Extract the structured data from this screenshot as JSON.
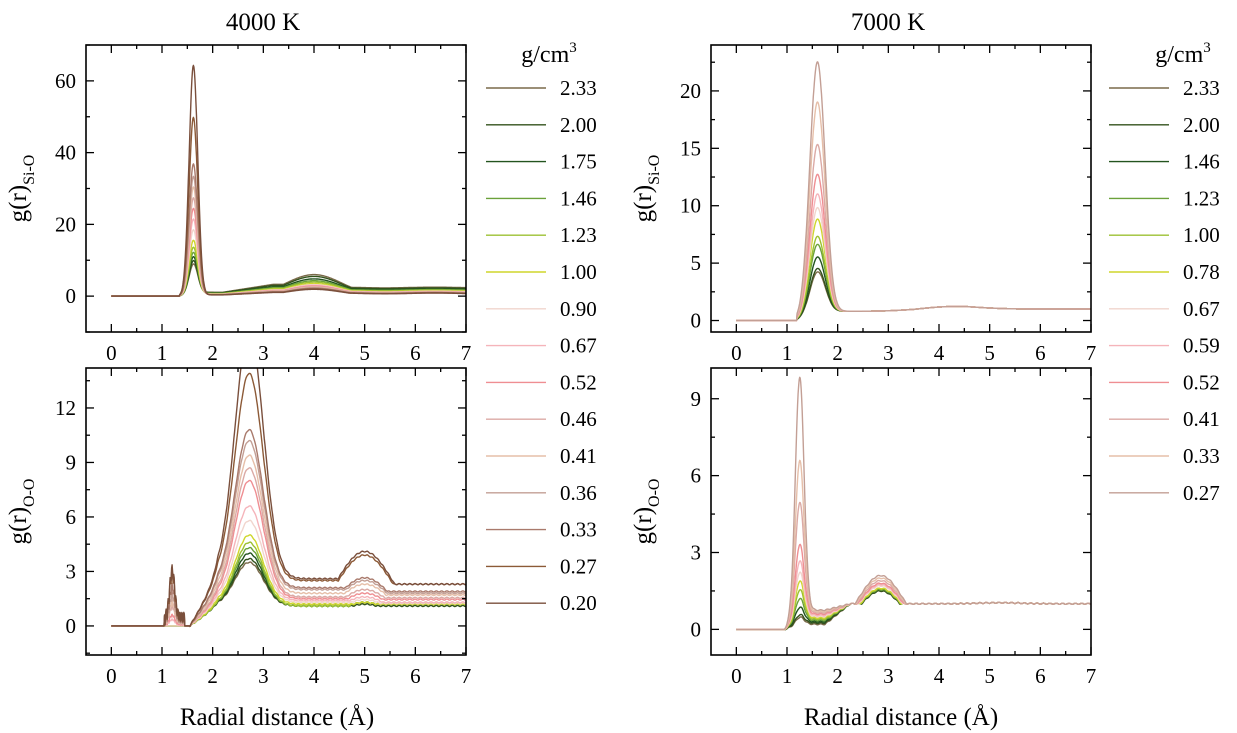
{
  "figure": {
    "xlabel": "Radial distance (Å)",
    "columns": [
      {
        "title": "4000 K",
        "legend_title": "g/cm",
        "legend_title_sup": "3"
      },
      {
        "title": "7000 K",
        "legend_title": "g/cm",
        "legend_title_sup": "3"
      }
    ]
  },
  "chart_data": [
    {
      "type": "line",
      "panel": "4000 K Si-O",
      "ylabel": "g(r)",
      "ylabel_sub": "Si-O",
      "xlim": [
        -0.5,
        7
      ],
      "ylim": [
        -10,
        70
      ],
      "xticks": [
        0,
        1,
        2,
        3,
        4,
        5,
        6,
        7
      ],
      "yticks": [
        0,
        20,
        40,
        60
      ],
      "grid": false,
      "legend": "right",
      "peak_x": 1.62,
      "trough_x": 2.5,
      "second_peak_x": 4.0,
      "rise_start": 1.4,
      "second_peak": [
        6.0,
        5.5,
        4.8,
        4.3,
        3.9,
        3.5,
        3.2,
        3.0,
        2.8,
        2.6,
        2.5,
        2.3,
        2.2,
        2.0,
        1.9
      ],
      "series": [
        {
          "name": "2.33",
          "color": "#7a6a4a",
          "values": [
            8.0
          ]
        },
        {
          "name": "2.00",
          "color": "#33521c",
          "values": [
            9.0
          ]
        },
        {
          "name": "1.75",
          "color": "#23541f",
          "values": [
            10.2
          ]
        },
        {
          "name": "1.46",
          "color": "#6ba13a",
          "values": [
            11.5
          ]
        },
        {
          "name": "1.23",
          "color": "#9cc032",
          "values": [
            13.0
          ]
        },
        {
          "name": "1.00",
          "color": "#cfd62c",
          "values": [
            15.0
          ]
        },
        {
          "name": "0.90",
          "color": "#f1d5cd",
          "values": [
            18.0
          ]
        },
        {
          "name": "0.67",
          "color": "#f5b4ba",
          "values": [
            21.0
          ]
        },
        {
          "name": "0.52",
          "color": "#ef8e92",
          "values": [
            24.0
          ]
        },
        {
          "name": "0.46",
          "color": "#dbaaa5",
          "values": [
            27.0
          ]
        },
        {
          "name": "0.41",
          "color": "#e6bfa9",
          "values": [
            30.0
          ]
        },
        {
          "name": "0.36",
          "color": "#c39f95",
          "values": [
            33.0
          ]
        },
        {
          "name": "0.33",
          "color": "#a97a6c",
          "values": [
            36.5
          ]
        },
        {
          "name": "0.27",
          "color": "#8c5a37",
          "values": [
            49.5
          ]
        },
        {
          "name": "0.20",
          "color": "#7a4f3c",
          "values": [
            64.0
          ]
        }
      ]
    },
    {
      "type": "line",
      "panel": "7000 K Si-O",
      "ylabel": "g(r)",
      "ylabel_sub": "Si-O",
      "xlim": [
        -0.5,
        7
      ],
      "ylim": [
        -1,
        24
      ],
      "xticks": [
        0,
        1,
        2,
        3,
        4,
        5,
        6,
        7
      ],
      "yticks": [
        0,
        5,
        10,
        15,
        20
      ],
      "grid": false,
      "legend": "right",
      "peak_x": 1.6,
      "trough_x": 2.8,
      "second_peak_x": 4.1,
      "rise_start": 1.2,
      "second_peak": [
        1.08,
        1.08,
        1.08,
        1.08,
        1.08,
        1.08,
        1.08,
        1.08,
        1.08,
        1.08,
        1.08,
        1.08,
        1.08
      ],
      "series": [
        {
          "name": "2.33",
          "color": "#7a6a4a",
          "values": [
            3.7
          ]
        },
        {
          "name": "2.00",
          "color": "#33521c",
          "values": [
            4.0
          ]
        },
        {
          "name": "1.46",
          "color": "#23541f",
          "values": [
            5.0
          ]
        },
        {
          "name": "1.23",
          "color": "#6ba13a",
          "values": [
            6.1
          ]
        },
        {
          "name": "1.00",
          "color": "#9cc032",
          "values": [
            6.8
          ]
        },
        {
          "name": "0.78",
          "color": "#cfd62c",
          "values": [
            8.3
          ]
        },
        {
          "name": "0.67",
          "color": "#f1d5cd",
          "values": [
            9.3
          ]
        },
        {
          "name": "0.59",
          "color": "#f5b4ba",
          "values": [
            10.5
          ]
        },
        {
          "name": "0.52",
          "color": "#ef8e92",
          "values": [
            12.2
          ]
        },
        {
          "name": "0.41",
          "color": "#dbaaa5",
          "values": [
            14.8
          ]
        },
        {
          "name": "0.33",
          "color": "#e6bfa9",
          "values": [
            18.5
          ]
        },
        {
          "name": "0.27",
          "color": "#c39f95",
          "values": [
            22.0
          ]
        }
      ]
    },
    {
      "type": "line",
      "panel": "4000 K O-O",
      "ylabel": "g(r)",
      "ylabel_sub": "O-O",
      "xlim": [
        -0.5,
        7
      ],
      "ylim": [
        -1.6,
        14.2
      ],
      "xticks": [
        0,
        1,
        2,
        3,
        4,
        5,
        6,
        7
      ],
      "yticks": [
        0,
        3,
        6,
        9,
        12
      ],
      "grid": false,
      "peak_x": 2.72,
      "second_peak_x": 5.0,
      "trough_x": 4.0,
      "rise_start": 1.6,
      "small_peak_x": 1.2,
      "small_peak": [
        0.0,
        0.0,
        0.0,
        0.0,
        0.0,
        0.0,
        0.0,
        0.3,
        0.5,
        0.9,
        1.1,
        1.4,
        1.8,
        2.4,
        2.6
      ],
      "second_peak": [
        1.3,
        1.2,
        1.3,
        1.3,
        1.3,
        1.3,
        1.45,
        1.6,
        1.8,
        2.0,
        2.3,
        2.5,
        2.65,
        3.9,
        4.1
      ],
      "tail": [
        1.2,
        1.1,
        1.2,
        1.2,
        1.2,
        1.2,
        1.25,
        1.3,
        1.45,
        1.55,
        1.7,
        1.8,
        1.9,
        2.3,
        2.3
      ],
      "trough": [
        1.1,
        1.1,
        1.1,
        1.1,
        1.1,
        1.2,
        1.3,
        1.4,
        1.5,
        1.6,
        1.8,
        2.0,
        2.1,
        2.5,
        2.6
      ],
      "series": [
        {
          "name": "2.33",
          "values": [
            2.4
          ]
        },
        {
          "name": "2.00",
          "values": [
            2.6
          ]
        },
        {
          "name": "1.75",
          "values": [
            2.9
          ]
        },
        {
          "name": "1.46",
          "values": [
            3.2
          ]
        },
        {
          "name": "1.23",
          "values": [
            3.5
          ]
        },
        {
          "name": "1.00",
          "values": [
            3.8
          ]
        },
        {
          "name": "0.90",
          "values": [
            4.5
          ]
        },
        {
          "name": "0.67",
          "values": [
            5.2
          ]
        },
        {
          "name": "0.52",
          "values": [
            6.5
          ]
        },
        {
          "name": "0.46",
          "values": [
            7.1
          ]
        },
        {
          "name": "0.41",
          "values": [
            7.6
          ]
        },
        {
          "name": "0.36",
          "values": [
            8.2
          ]
        },
        {
          "name": "0.33",
          "values": [
            8.7
          ]
        },
        {
          "name": "0.27",
          "values": [
            11.4
          ]
        },
        {
          "name": "0.20",
          "values": [
            13.7
          ]
        }
      ]
    },
    {
      "type": "line",
      "panel": "7000 K O-O",
      "ylabel": "g(r)",
      "ylabel_sub": "O-O",
      "xlim": [
        -0.5,
        7
      ],
      "ylim": [
        -1,
        10.2
      ],
      "xticks": [
        0,
        1,
        2,
        3,
        4,
        5,
        6,
        7
      ],
      "yticks": [
        0,
        3,
        6,
        9
      ],
      "grid": false,
      "peak_x": 1.25,
      "second_peak_x": 2.85,
      "trough_x": 1.75,
      "rise_start": 0.95,
      "second_peak": [
        1.5,
        1.5,
        1.55,
        1.55,
        1.6,
        1.6,
        1.7,
        1.75,
        1.8,
        1.9,
        2.0,
        2.1
      ],
      "trough": [
        0.2,
        0.25,
        0.3,
        0.35,
        0.4,
        0.45,
        0.5,
        0.55,
        0.6,
        0.65,
        0.7,
        0.75
      ],
      "series": [
        {
          "name": "2.33",
          "values": [
            0.3
          ]
        },
        {
          "name": "2.00",
          "values": [
            0.35
          ]
        },
        {
          "name": "1.46",
          "values": [
            0.6
          ]
        },
        {
          "name": "1.23",
          "values": [
            0.9
          ]
        },
        {
          "name": "1.00",
          "values": [
            1.2
          ]
        },
        {
          "name": "0.78",
          "values": [
            1.5
          ]
        },
        {
          "name": "0.67",
          "values": [
            1.8
          ]
        },
        {
          "name": "0.59",
          "values": [
            2.2
          ]
        },
        {
          "name": "0.52",
          "values": [
            2.8
          ]
        },
        {
          "name": "0.41",
          "values": [
            4.4
          ]
        },
        {
          "name": "0.33",
          "values": [
            6.0
          ]
        },
        {
          "name": "0.27",
          "values": [
            9.2
          ]
        }
      ]
    }
  ]
}
